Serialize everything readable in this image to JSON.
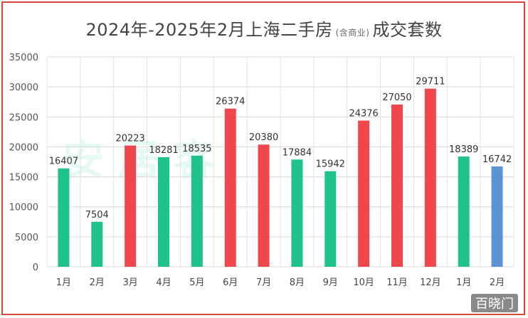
{
  "chart_data": {
    "type": "bar",
    "title_main_a": "2024年-2025年2月上海二手房",
    "title_small": "(含商业)",
    "title_main_b": "成交套数",
    "categories": [
      "1月",
      "2月",
      "3月",
      "4月",
      "5月",
      "6月",
      "7月",
      "8月",
      "9月",
      "10月",
      "11月",
      "12月",
      "1月",
      "2月"
    ],
    "values": [
      16407,
      7504,
      20223,
      18281,
      18535,
      26374,
      20380,
      17884,
      15942,
      24376,
      27050,
      29711,
      18389,
      16742
    ],
    "bar_colors": [
      "#1fc28b",
      "#1fc28b",
      "#f0474c",
      "#1fc28b",
      "#1fc28b",
      "#f0474c",
      "#f0474c",
      "#1fc28b",
      "#1fc28b",
      "#f0474c",
      "#f0474c",
      "#f0474c",
      "#1fc28b",
      "#5b93d3"
    ],
    "ylim": [
      0,
      35000
    ],
    "yticks": [
      0,
      5000,
      10000,
      15000,
      20000,
      25000,
      30000,
      35000
    ],
    "grid": true
  },
  "watermark": "安居客",
  "logo": "百晓门"
}
